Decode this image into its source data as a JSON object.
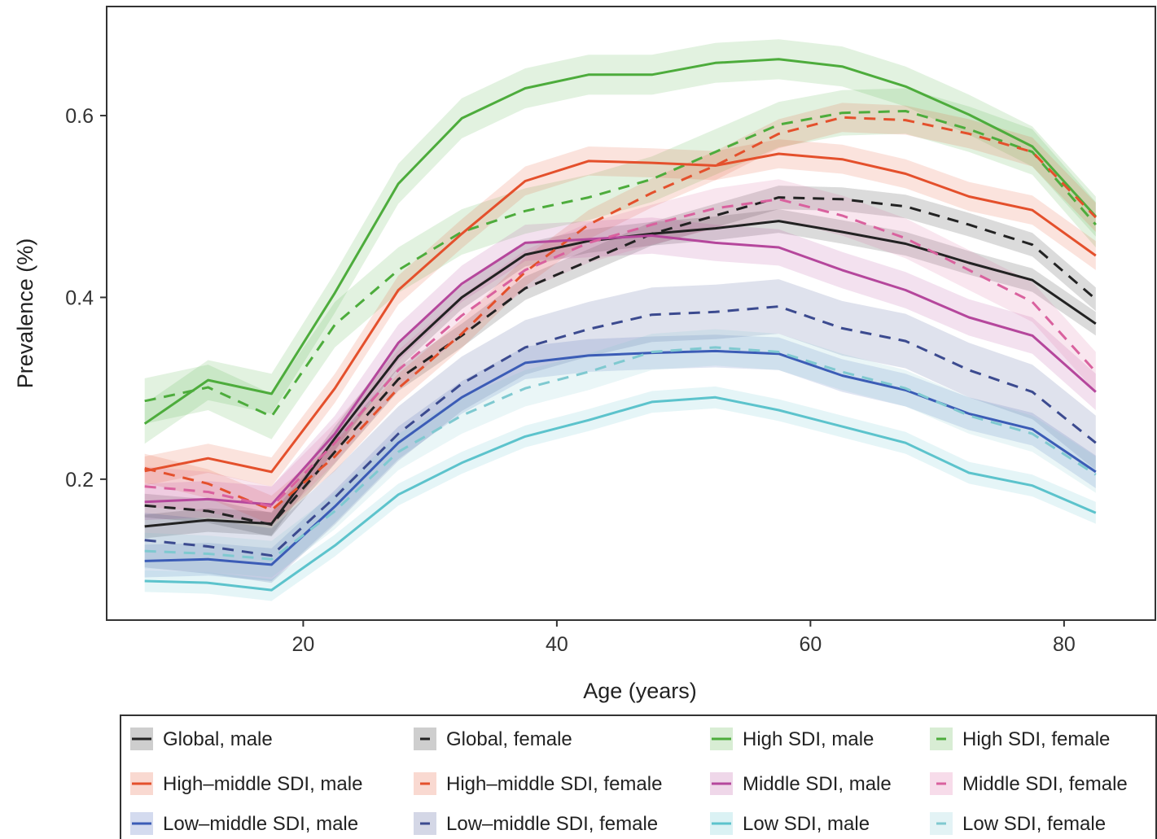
{
  "chart_data": {
    "type": "line",
    "title": "",
    "xlabel": "Age (years)",
    "ylabel": "Prevalence (%)",
    "xlim": [
      4.5,
      87.2
    ],
    "ylim": [
      0.045,
      0.72
    ],
    "xticks": [
      20,
      40,
      60,
      80
    ],
    "yticks": [
      0.2,
      0.4,
      0.6
    ],
    "grid": false,
    "legend_position": "bottom",
    "legend_columns": 4,
    "x": [
      7.5,
      12.5,
      17.5,
      22.5,
      27.5,
      32.5,
      37.5,
      42.5,
      47.5,
      52.5,
      57.5,
      62.5,
      67.5,
      72.5,
      77.5,
      82.5
    ],
    "series": [
      {
        "name": "Global, male",
        "color": "#222222",
        "dash": false,
        "values": [
          0.148,
          0.155,
          0.151,
          0.245,
          0.335,
          0.4,
          0.447,
          0.462,
          0.47,
          0.476,
          0.484,
          0.472,
          0.459,
          0.438,
          0.419,
          0.371
        ],
        "band": 0.013
      },
      {
        "name": "Global, female",
        "color": "#222222",
        "dash": true,
        "values": [
          0.171,
          0.165,
          0.15,
          0.23,
          0.31,
          0.358,
          0.41,
          0.44,
          0.47,
          0.49,
          0.51,
          0.508,
          0.5,
          0.48,
          0.458,
          0.398
        ],
        "band": 0.013
      },
      {
        "name": "High SDI, male",
        "color": "#4dac3c",
        "dash": false,
        "values": [
          0.261,
          0.309,
          0.294,
          0.405,
          0.525,
          0.597,
          0.63,
          0.645,
          0.645,
          0.658,
          0.662,
          0.654,
          0.632,
          0.601,
          0.566,
          0.489
        ],
        "band": 0.022
      },
      {
        "name": "High SDI, female",
        "color": "#4dac3c",
        "dash": true,
        "values": [
          0.286,
          0.301,
          0.269,
          0.37,
          0.43,
          0.472,
          0.495,
          0.51,
          0.53,
          0.56,
          0.59,
          0.603,
          0.605,
          0.585,
          0.56,
          0.48
        ],
        "band": 0.025
      },
      {
        "name": "High–middle SDI, male",
        "color": "#e4502c",
        "dash": false,
        "values": [
          0.209,
          0.223,
          0.208,
          0.3,
          0.408,
          0.47,
          0.528,
          0.55,
          0.548,
          0.545,
          0.558,
          0.552,
          0.536,
          0.511,
          0.496,
          0.446
        ],
        "band": 0.016
      },
      {
        "name": "High–middle SDI, female",
        "color": "#e4502c",
        "dash": true,
        "values": [
          0.212,
          0.195,
          0.166,
          0.225,
          0.3,
          0.36,
          0.428,
          0.48,
          0.515,
          0.545,
          0.58,
          0.598,
          0.595,
          0.58,
          0.56,
          0.488
        ],
        "band": 0.016
      },
      {
        "name": "Middle SDI, male",
        "color": "#b5479c",
        "dash": false,
        "values": [
          0.175,
          0.178,
          0.172,
          0.25,
          0.35,
          0.415,
          0.46,
          0.464,
          0.468,
          0.46,
          0.455,
          0.43,
          0.408,
          0.378,
          0.358,
          0.296
        ],
        "band": 0.02
      },
      {
        "name": "Middle SDI, female",
        "color": "#d9619e",
        "dash": true,
        "values": [
          0.192,
          0.186,
          0.17,
          0.24,
          0.32,
          0.38,
          0.43,
          0.46,
          0.48,
          0.498,
          0.508,
          0.49,
          0.465,
          0.43,
          0.395,
          0.318
        ],
        "band": 0.022
      },
      {
        "name": "Low–middle SDI, male",
        "color": "#3b5cb6",
        "dash": false,
        "values": [
          0.11,
          0.112,
          0.106,
          0.17,
          0.24,
          0.29,
          0.328,
          0.336,
          0.339,
          0.341,
          0.338,
          0.314,
          0.298,
          0.272,
          0.255,
          0.208
        ],
        "band": 0.018
      },
      {
        "name": "Low–middle SDI, female",
        "color": "#3b4a8f",
        "dash": true,
        "values": [
          0.133,
          0.126,
          0.116,
          0.18,
          0.25,
          0.305,
          0.345,
          0.365,
          0.381,
          0.384,
          0.39,
          0.366,
          0.352,
          0.32,
          0.296,
          0.24
        ],
        "band": 0.03
      },
      {
        "name": "Low SDI, male",
        "color": "#5cc3cc",
        "dash": false,
        "values": [
          0.088,
          0.086,
          0.078,
          0.127,
          0.183,
          0.218,
          0.247,
          0.265,
          0.285,
          0.29,
          0.276,
          0.258,
          0.24,
          0.207,
          0.193,
          0.163
        ],
        "band": 0.012
      },
      {
        "name": "Low SDI, female",
        "color": "#7fc9d0",
        "dash": true,
        "values": [
          0.121,
          0.118,
          0.112,
          0.165,
          0.23,
          0.27,
          0.3,
          0.318,
          0.34,
          0.345,
          0.34,
          0.318,
          0.3,
          0.27,
          0.25,
          0.205
        ],
        "band": 0.02
      }
    ]
  }
}
